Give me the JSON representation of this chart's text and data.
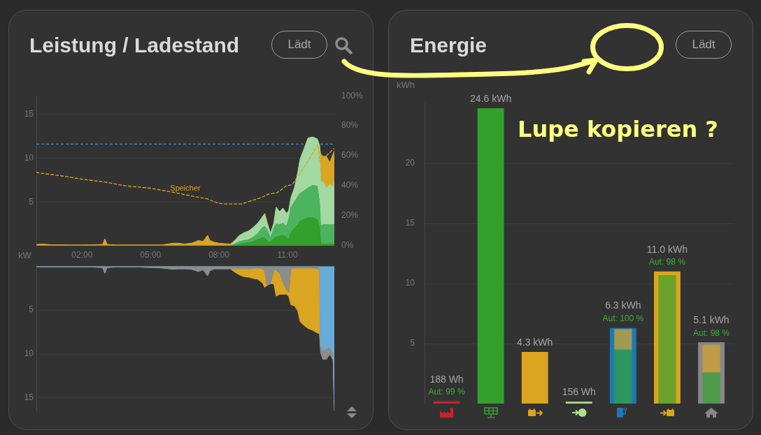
{
  "chart_data": [
    {
      "type": "area",
      "title": "Leistung / Ladestand",
      "ylabel": "kW",
      "annotations": [
        "Lädt"
      ],
      "x": [
        0,
        0.3,
        0.6,
        1,
        1.5,
        2,
        2.5,
        2.9,
        3,
        3.1,
        3.5,
        4,
        4.5,
        5,
        5.5,
        6,
        6.2,
        6.5,
        6.8,
        7.1,
        7.3,
        7.5,
        7.6,
        7.8,
        8,
        8.2,
        8.5,
        8.7,
        8.9,
        9.1,
        9.3,
        9.5,
        9.7,
        9.9,
        10,
        10.1,
        10.25,
        10.4,
        10.5,
        10.65,
        10.8,
        10.95,
        11.05,
        11.15,
        11.3,
        11.45,
        11.55,
        11.7,
        11.9,
        12.1,
        12.3,
        12.4,
        12.45,
        12.55,
        12.7,
        12.85,
        13,
        13.05
      ],
      "xlim": [
        0,
        13.05
      ],
      "xticks": [
        {
          "value": 2,
          "label": "02:00"
        },
        {
          "value": 5,
          "label": "05:00"
        },
        {
          "value": 8,
          "label": "08:00"
        },
        {
          "value": 11,
          "label": "11:00"
        }
      ],
      "ylim": [
        0,
        17.1
      ],
      "yticks": [
        5,
        10,
        15
      ],
      "y2lim": [
        0,
        100
      ],
      "y2ticks": [
        {
          "value": 0,
          "label": "0%"
        },
        {
          "value": 20,
          "label": "20%"
        },
        {
          "value": 40,
          "label": "40%"
        },
        {
          "value": 60,
          "label": "60%"
        },
        {
          "value": 80,
          "label": "80%"
        },
        {
          "value": 100,
          "label": "100%"
        }
      ],
      "stacked": true,
      "grid": "y",
      "ref_lines": [
        {
          "axis": "y",
          "value": 11.6,
          "color": "#3a8fd0",
          "line_style": "dashed"
        }
      ],
      "series": [
        {
          "color": "#33a02c",
          "values": [
            0,
            0,
            0,
            0,
            0,
            0,
            0,
            0,
            0,
            0,
            0,
            0,
            0,
            0,
            0,
            0,
            0,
            0,
            0,
            0,
            0,
            0,
            0,
            0,
            0,
            0,
            0,
            0.05,
            0.15,
            0.3,
            0.35,
            0.5,
            0.7,
            0.9,
            0.9,
            0.6,
            0.4,
            0.8,
            1.0,
            1.1,
            1.2,
            1.0,
            0.7,
            1.5,
            2.0,
            2.4,
            2.8,
            3.0,
            3.2,
            3.2,
            3.0,
            2.2,
            0.2,
            0.2,
            0.2,
            0.2,
            0.2,
            0.2
          ]
        },
        {
          "color": "#4cb35f",
          "values": [
            0,
            0,
            0,
            0,
            0,
            0,
            0,
            0,
            0,
            0,
            0,
            0,
            0,
            0,
            0,
            0,
            0,
            0,
            0,
            0,
            0,
            0,
            0,
            0,
            0,
            0,
            0,
            0.15,
            0.35,
            0.3,
            0.35,
            0.5,
            0.7,
            1.2,
            1.3,
            1.3,
            0.5,
            1.2,
            1.5,
            1.3,
            1.4,
            1.2,
            2.3,
            2.9,
            3.0,
            3.2,
            3.2,
            3.2,
            3.4,
            3.7,
            3.8,
            2.8,
            2.1,
            2.2,
            2.2,
            2.2,
            2.2,
            2.2
          ]
        },
        {
          "color": "#a3d9a0",
          "values": [
            0,
            0,
            0,
            0,
            0,
            0,
            0,
            0,
            0,
            0,
            0,
            0,
            0,
            0,
            0,
            0,
            0,
            0,
            0,
            0,
            0,
            0,
            0,
            0,
            0,
            0,
            0,
            0.4,
            0.7,
            0.9,
            1.0,
            1.1,
            1.2,
            1.2,
            1.4,
            0.7,
            0.5,
            0.6,
            1.9,
            1.5,
            1.7,
            1.5,
            1.0,
            1.1,
            1.6,
            2.8,
            3.9,
            4.7,
            5.7,
            5.5,
            5.4,
            6.5,
            4.9,
            5.0,
            4.2,
            4.6,
            4.3,
            5.0
          ]
        },
        {
          "color": "#daa520",
          "values": [
            0.15,
            0.2,
            0.12,
            0.12,
            0.1,
            0.1,
            0.12,
            0.15,
            0.8,
            0.15,
            0.1,
            0.1,
            0.1,
            0.1,
            0.1,
            0.3,
            0.3,
            0.2,
            0.3,
            0.6,
            0.5,
            1.2,
            0.6,
            0.4,
            0.3,
            0.25,
            0.2,
            0.05,
            0,
            null,
            null,
            null,
            null,
            0,
            0.1,
            0.2,
            0,
            null,
            null,
            null,
            null,
            null,
            null,
            null,
            null,
            null,
            null,
            null,
            null,
            null,
            null,
            0,
            3.3,
            2.8,
            3.6,
            2.5,
            3.8,
            3.4
          ]
        },
        {
          "type": "line",
          "name": "Speicher",
          "axis": "y2",
          "color": "#daa520",
          "line_style": "dashed",
          "x": [
            0,
            0.15,
            0.55,
            1.4,
            2.0,
            3.0,
            3.9,
            5.0,
            6.1,
            6.8,
            7.5,
            7.9,
            8.2,
            9.0,
            9.45,
            9.85,
            10.15,
            10.55,
            10.95,
            11.2,
            11.5,
            11.9,
            12.33,
            12.42,
            13.05
          ],
          "values": [
            49,
            48.5,
            47.7,
            46,
            44.4,
            42.5,
            40,
            38.4,
            35.4,
            33.2,
            31.2,
            28.7,
            27.9,
            27.9,
            30.2,
            32.1,
            34.4,
            35.4,
            40,
            40.7,
            47.4,
            56.5,
            67.7,
            56,
            65
          ]
        }
      ]
    },
    {
      "type": "area",
      "x": [
        0,
        0.3,
        0.6,
        1,
        1.5,
        2,
        2.5,
        2.9,
        3,
        3.1,
        3.5,
        4,
        4.5,
        5,
        5.5,
        6,
        6.2,
        6.5,
        6.8,
        7.1,
        7.3,
        7.5,
        7.6,
        7.8,
        8,
        8.2,
        8.5,
        8.7,
        8.9,
        9.1,
        9.3,
        9.5,
        9.7,
        9.9,
        10,
        10.1,
        10.25,
        10.4,
        10.5,
        10.65,
        10.8,
        10.95,
        11.05,
        11.15,
        11.3,
        11.45,
        11.55,
        11.7,
        11.9,
        12.1,
        12.3,
        12.4,
        12.45,
        12.55,
        12.7,
        12.85,
        13,
        13.05
      ],
      "xlim": [
        0,
        13.05
      ],
      "ylim": [
        16.5,
        0
      ],
      "yticks": [
        5,
        10,
        15
      ],
      "stacked": true,
      "grid": "y",
      "tick_labels": "y",
      "series": [
        {
          "color": "#67acd9",
          "values": [
            0,
            0,
            0,
            0,
            0,
            0,
            0,
            0,
            0,
            0,
            0,
            0,
            0,
            0,
            0,
            0,
            0,
            0,
            0,
            0,
            0,
            0,
            0,
            0,
            0,
            0,
            0,
            0,
            0,
            0,
            0,
            0,
            0,
            0,
            0,
            0,
            0,
            0,
            0,
            0,
            0,
            0,
            0,
            0,
            0,
            0,
            0,
            0,
            0,
            0,
            0,
            0,
            9.0,
            9.6,
            9.4,
            9.2,
            10.0,
            16.0
          ]
        },
        {
          "color": "#8c8c8c",
          "values": [
            0.1,
            0.1,
            0.1,
            0.1,
            0.1,
            0.1,
            0.1,
            0.15,
            0.8,
            0.15,
            0.1,
            0.1,
            0.1,
            0.15,
            0.2,
            0.35,
            0.3,
            0.3,
            0.35,
            0.6,
            0.4,
            1.1,
            0.5,
            0.3,
            0.3,
            0.3,
            0.3,
            0.3,
            0.3,
            0.3,
            0.3,
            0.25,
            0.2,
            0.3,
            0.5,
            2.2,
            2.0,
            0.5,
            0.4,
            0.8,
            1.8,
            2.6,
            3.0,
            0.3,
            0.2,
            0.2,
            0.2,
            0.2,
            0.2,
            0.2,
            0.3,
            0.3,
            0.8,
            1.0,
            1.2,
            0.8,
            0.7,
            0.4
          ]
        },
        {
          "color": "#daa520",
          "values": [
            0,
            0,
            0,
            0,
            0,
            0,
            0,
            0,
            0,
            0,
            0,
            0,
            0,
            0,
            0,
            0,
            0,
            0,
            0,
            0,
            0,
            0,
            0,
            0,
            0,
            0,
            0,
            0.4,
            0.7,
            0.9,
            0.95,
            1.15,
            1.3,
            1.6,
            1.9,
            0,
            0,
            1.5,
            3.0,
            2.4,
            1.4,
            0.6,
            0.4,
            4.1,
            4.3,
            4.9,
            6.1,
            6.5,
            6.9,
            7.1,
            7.3,
            7.4,
            0,
            0,
            0,
            0,
            0,
            0
          ]
        }
      ]
    },
    {
      "type": "bar",
      "title": "Energie",
      "ylabel": "kWh",
      "annotations": [
        "Lädt",
        "Lupe kopieren ?",
        "188 Wh\nAut: 99 %",
        "156 Wh"
      ],
      "categories": [
        null,
        null,
        null,
        null,
        null,
        null,
        null
      ],
      "ylim": [
        0,
        25
      ],
      "yticks": [
        5,
        10,
        15,
        20
      ],
      "grid": "y",
      "series": [
        {
          "colors": [
            "#c4262e",
            "#33a02c",
            "#daa520",
            "#b2df8a",
            "#1f78b4",
            "#daa520",
            "#888888"
          ],
          "values": [
            0.188,
            24.6,
            4.3,
            0.156,
            6.3,
            11.0,
            5.1
          ],
          "value_labels": [
            null,
            "24.6 kWh",
            "4.3 kWh",
            null,
            "6.3 kWh\nAut: 100 %",
            "11.0 kWh\nAut: 98 %",
            "5.1 kWh\nAut: 98 %"
          ]
        },
        {
          "colors": [
            null,
            null,
            null,
            null,
            "#2e9660",
            "#6aa22a",
            "#4e9a4a"
          ],
          "values": [
            null,
            null,
            null,
            null,
            4.5,
            10.7,
            2.6
          ]
        },
        {
          "colors": [
            null,
            null,
            null,
            null,
            "#a09a55",
            null,
            "#bf9b45"
          ],
          "base": [
            null,
            null,
            null,
            null,
            4.5,
            null,
            2.6
          ],
          "values": [
            null,
            null,
            null,
            null,
            1.7,
            null,
            2.3
          ]
        }
      ]
    }
  ]
}
